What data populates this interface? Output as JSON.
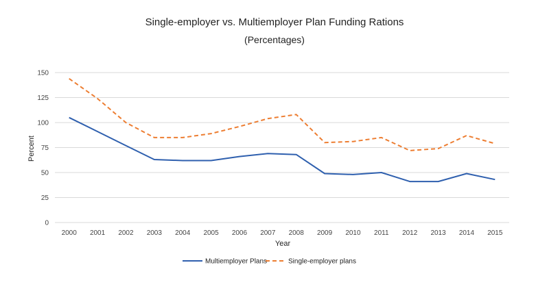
{
  "chart_data": {
    "type": "line",
    "title": "Single-employer vs. Multiemployer Plan Funding Rations",
    "subtitle": "(Percentages)",
    "xlabel": "Year",
    "ylabel": "Percent",
    "x": [
      "2000",
      "2001",
      "2002",
      "2003",
      "2004",
      "2005",
      "2006",
      "2007",
      "2008",
      "2009",
      "2010",
      "2011",
      "2012",
      "2013",
      "2014",
      "2015"
    ],
    "ylim": [
      0,
      150
    ],
    "yticks": [
      0,
      25,
      50,
      75,
      100,
      125,
      150
    ],
    "grid": true,
    "legend_position": "bottom",
    "series": [
      {
        "name": "Multiemployer Plans",
        "style": "solid",
        "color": "#2e5fae",
        "values": [
          105,
          91,
          77,
          63,
          62,
          62,
          66,
          69,
          68,
          49,
          48,
          50,
          41,
          41,
          49,
          43
        ]
      },
      {
        "name": "Single-employer plans",
        "style": "dashed",
        "color": "#ed7d31",
        "values": [
          144,
          124,
          100,
          85,
          85,
          89,
          96,
          104,
          108,
          80,
          81,
          85,
          72,
          74,
          87,
          79
        ]
      }
    ]
  }
}
